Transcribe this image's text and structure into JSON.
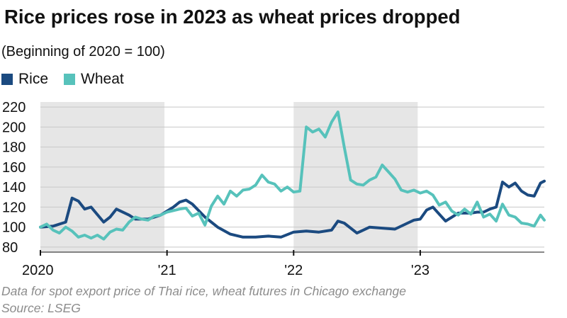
{
  "chart_data": {
    "type": "line",
    "title": "Rice prices rose in 2023 as wheat prices dropped",
    "subtitle": "(Beginning of 2020 = 100)",
    "xlabel": "",
    "ylabel": "",
    "ylim": [
      75,
      225
    ],
    "xlim": [
      2020.0,
      2023.98
    ],
    "y_ticks": [
      "80",
      "100",
      "120",
      "140",
      "160",
      "180",
      "200",
      "220"
    ],
    "x_ticks": [
      {
        "label": "2020",
        "x": 2020.0
      },
      {
        "label": "'21",
        "x": 2021.0
      },
      {
        "label": "'22",
        "x": 2022.0
      },
      {
        "label": "'23",
        "x": 2023.0
      }
    ],
    "shaded_periods": [
      [
        2020.0,
        2020.98
      ],
      [
        2022.0,
        2022.98
      ]
    ],
    "grid": "horizontal",
    "legend_position": "top-left",
    "series": [
      {
        "name": "Rice",
        "color": "#1b4a80",
        "x": [
          2020.0,
          2020.1,
          2020.2,
          2020.25,
          2020.3,
          2020.35,
          2020.4,
          2020.5,
          2020.55,
          2020.6,
          2020.7,
          2020.75,
          2020.85,
          2020.95,
          2021.0,
          2021.05,
          2021.1,
          2021.15,
          2021.2,
          2021.3,
          2021.4,
          2021.5,
          2021.6,
          2021.7,
          2021.8,
          2021.9,
          2022.0,
          2022.1,
          2022.2,
          2022.3,
          2022.35,
          2022.4,
          2022.5,
          2022.55,
          2022.6,
          2022.7,
          2022.8,
          2022.9,
          2022.95,
          2023.0,
          2023.05,
          2023.1,
          2023.15,
          2023.2,
          2023.3,
          2023.4,
          2023.45,
          2023.5,
          2023.55,
          2023.6,
          2023.65,
          2023.7,
          2023.75,
          2023.8,
          2023.85,
          2023.9,
          2023.95,
          2023.98
        ],
        "values": [
          100,
          101,
          105,
          129,
          126,
          118,
          120,
          105,
          110,
          118,
          112,
          108,
          108,
          112,
          116,
          120,
          125,
          127,
          123,
          110,
          100,
          93,
          90,
          90,
          91,
          90,
          95,
          96,
          95,
          97,
          106,
          104,
          94,
          97,
          100,
          99,
          98,
          104,
          107,
          108,
          117,
          120,
          113,
          106,
          114,
          114,
          115,
          115,
          118,
          120,
          145,
          140,
          144,
          136,
          132,
          131,
          144,
          146
        ]
      },
      {
        "name": "Wheat",
        "color": "#57c2bb",
        "x": [
          2020.0,
          2020.05,
          2020.1,
          2020.15,
          2020.2,
          2020.25,
          2020.3,
          2020.35,
          2020.4,
          2020.45,
          2020.5,
          2020.55,
          2020.6,
          2020.65,
          2020.7,
          2020.75,
          2020.8,
          2020.85,
          2020.9,
          2020.95,
          2021.0,
          2021.1,
          2021.15,
          2021.2,
          2021.25,
          2021.3,
          2021.35,
          2021.4,
          2021.45,
          2021.5,
          2021.55,
          2021.6,
          2021.65,
          2021.7,
          2021.75,
          2021.8,
          2021.85,
          2021.9,
          2021.95,
          2022.0,
          2022.05,
          2022.1,
          2022.15,
          2022.2,
          2022.25,
          2022.3,
          2022.35,
          2022.4,
          2022.45,
          2022.5,
          2022.55,
          2022.6,
          2022.65,
          2022.7,
          2022.75,
          2022.8,
          2022.85,
          2022.9,
          2022.95,
          2023.0,
          2023.05,
          2023.1,
          2023.15,
          2023.2,
          2023.25,
          2023.3,
          2023.35,
          2023.4,
          2023.45,
          2023.5,
          2023.55,
          2023.6,
          2023.65,
          2023.7,
          2023.75,
          2023.8,
          2023.85,
          2023.9,
          2023.95,
          2023.98
        ],
        "values": [
          100,
          103,
          97,
          94,
          100,
          96,
          90,
          92,
          89,
          92,
          88,
          95,
          98,
          97,
          105,
          110,
          108,
          107,
          111,
          112,
          115,
          118,
          119,
          111,
          114,
          102,
          121,
          131,
          123,
          136,
          131,
          137,
          138,
          142,
          152,
          145,
          143,
          136,
          140,
          135,
          136,
          200,
          195,
          198,
          190,
          205,
          215,
          180,
          147,
          143,
          142,
          147,
          150,
          162,
          155,
          148,
          137,
          135,
          137,
          134,
          136,
          132,
          122,
          125,
          116,
          112,
          118,
          113,
          125,
          110,
          113,
          106,
          123,
          112,
          110,
          104,
          103,
          101,
          112,
          107
        ]
      }
    ]
  },
  "footnote": {
    "note": "Data for spot export price of Thai rice, wheat futures in Chicago exchange",
    "source": "Source: LSEG"
  }
}
